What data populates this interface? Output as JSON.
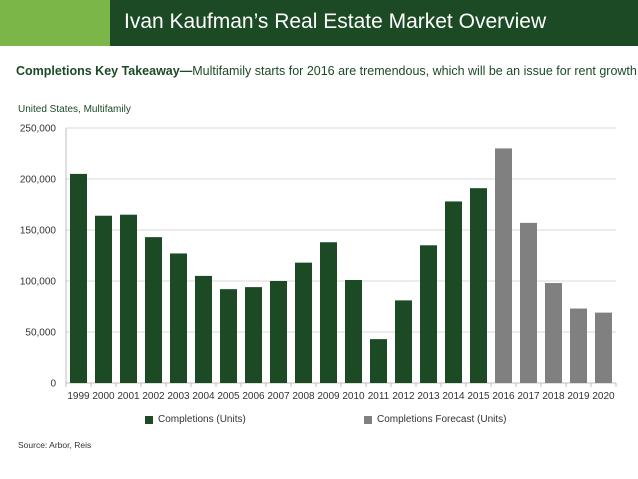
{
  "header": {
    "title": "Ivan Kaufman’s Real Estate Market Overview"
  },
  "takeaway": {
    "label": "Completions Key Takeaway—",
    "text": "Multifamily starts for 2016 are tremendous, which will be an issue for rent growth."
  },
  "region_label": "United States, Multifamily",
  "source": "Source: Arbor, Reis",
  "colors": {
    "actual": "#1b4a25",
    "forecast": "#808080",
    "accent": "#7ab648"
  },
  "chart_data": {
    "type": "bar",
    "categories": [
      "1999",
      "2000",
      "2001",
      "2002",
      "2003",
      "2004",
      "2005",
      "2006",
      "2007",
      "2008",
      "2009",
      "2010",
      "2011",
      "2012",
      "2013",
      "2014",
      "2015",
      "2016",
      "2017",
      "2018",
      "2019",
      "2020"
    ],
    "series": [
      {
        "name": "Completions (Units)",
        "values": [
          205000,
          164000,
          165000,
          143000,
          127000,
          105000,
          92000,
          94000,
          100000,
          118000,
          138000,
          101000,
          43000,
          81000,
          135000,
          178000,
          191000,
          null,
          null,
          null,
          null,
          null
        ]
      },
      {
        "name": "Completions Forecast (Units)",
        "values": [
          null,
          null,
          null,
          null,
          null,
          null,
          null,
          null,
          null,
          null,
          null,
          null,
          null,
          null,
          null,
          null,
          null,
          230000,
          157000,
          98000,
          73000,
          69000
        ]
      }
    ],
    "yticks": [
      "0",
      "50,000",
      "100,000",
      "150,000",
      "200,000",
      "250,000"
    ],
    "ylim": [
      0,
      250000
    ],
    "grid": true,
    "legend_position": "bottom"
  }
}
